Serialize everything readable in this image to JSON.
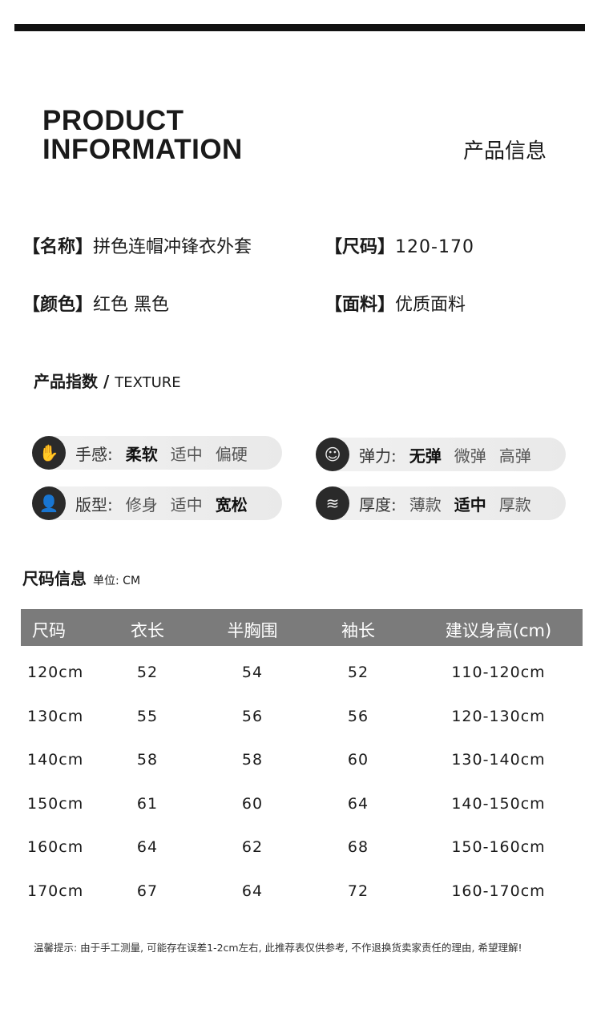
{
  "header": {
    "title_line1": "PRODUCT",
    "title_line2": "INFORMATION",
    "title_cn": "产品信息"
  },
  "info": [
    {
      "key": "【名称】",
      "value": "拼色连帽冲锋衣外套"
    },
    {
      "key": "【尺码】",
      "value": "120-170"
    },
    {
      "key": "【颜色】",
      "value": "红色 黑色"
    },
    {
      "key": "【面料】",
      "value": "优质面料"
    }
  ],
  "texture": {
    "title": "产品指数",
    "sep": " / ",
    "title_en": "TEXTURE",
    "items": [
      {
        "icon": "hand-feel-icon",
        "glyph": "✋",
        "label": "手感:",
        "options": [
          "柔软",
          "适中",
          "偏硬"
        ],
        "selected": 0
      },
      {
        "icon": "elasticity-icon",
        "glyph": "☺",
        "label": "弹力:",
        "options": [
          "无弹",
          "微弹",
          "高弹"
        ],
        "selected": 0
      },
      {
        "icon": "fit-person-icon",
        "glyph": "👤",
        "label": "版型:",
        "options": [
          "修身",
          "适中",
          "宽松"
        ],
        "selected": 2
      },
      {
        "icon": "thickness-icon",
        "glyph": "≋",
        "label": "厚度:",
        "options": [
          "薄款",
          "适中",
          "厚款"
        ],
        "selected": 1
      }
    ]
  },
  "size": {
    "title": "尺码信息",
    "unit": "单位: CM",
    "columns": [
      "尺码",
      "衣长",
      "半胸围",
      "袖长",
      "建议身高(cm)"
    ],
    "rows": [
      [
        "120cm",
        "52",
        "54",
        "52",
        "110-120cm"
      ],
      [
        "130cm",
        "55",
        "56",
        "56",
        "120-130cm"
      ],
      [
        "140cm",
        "58",
        "58",
        "60",
        "130-140cm"
      ],
      [
        "150cm",
        "61",
        "60",
        "64",
        "140-150cm"
      ],
      [
        "160cm",
        "64",
        "62",
        "68",
        "150-160cm"
      ],
      [
        "170cm",
        "67",
        "64",
        "72",
        "160-170cm"
      ]
    ]
  },
  "note": "温馨提示: 由于手工测量, 可能存在误差1-2cm左右, 此推荐表仅供参考, 不作退换货卖家责任的理由, 希望理解!"
}
